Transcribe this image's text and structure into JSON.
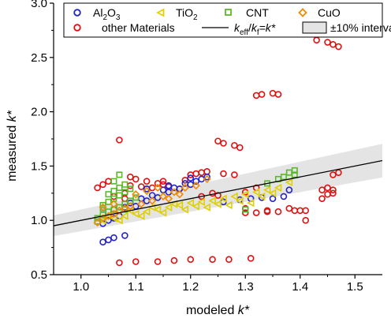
{
  "chart_data": {
    "type": "scatter",
    "xlabel": "modeled k*",
    "xlabel_parts": {
      "text": "modeled ",
      "sym": "k*"
    },
    "ylabel": "measured k*",
    "ylabel_parts": {
      "text": "measured ",
      "sym": "k*"
    },
    "xlim": [
      0.95,
      1.55
    ],
    "ylim": [
      0.5,
      3.0
    ],
    "xticks": [
      1.0,
      1.1,
      1.2,
      1.3,
      1.4,
      1.5
    ],
    "xtick_labels": [
      "1.0",
      "1.1",
      "1.2",
      "1.3",
      "1.4",
      "1.5"
    ],
    "yticks": [
      0.5,
      1.0,
      1.5,
      2.0,
      2.5,
      3.0
    ],
    "ytick_labels": [
      "0.5",
      "1.0",
      "1.5",
      "2.0",
      "2.5",
      "3.0"
    ],
    "grid": false,
    "legend_position": "top",
    "colors": {
      "Al2O3": "#2323c8",
      "TiO2": "#e0d000",
      "CNT": "#5cb82a",
      "CuO": "#f08a00",
      "other": "#e01010",
      "line": "#000000",
      "band": "#e4e4e4"
    },
    "legend": {
      "al2o3_base": "Al",
      "al2o3_sub1": "2",
      "al2o3_mid": "O",
      "al2o3_sub2": "3",
      "tio2_base": "TiO",
      "tio2_sub": "2",
      "cnt": "CNT",
      "cuo": "CuO",
      "other": "other Materials",
      "line_k": "k",
      "line_eff": "eff",
      "line_slash": "/",
      "line_kf": "k",
      "line_f": "f",
      "line_eq": "=k*",
      "band": "±10% interval"
    },
    "reference_line": {
      "slope": 1.0
    },
    "band_fraction": 0.1,
    "series": [
      {
        "name": "other Materials",
        "marker": "circle",
        "x": [
          1.07,
          1.1,
          1.14,
          1.17,
          1.2,
          1.24,
          1.27,
          1.31,
          1.07,
          1.04,
          1.03,
          1.05,
          1.08,
          1.06,
          1.32,
          1.33,
          1.35,
          1.36,
          1.25,
          1.26,
          1.28,
          1.29,
          1.43,
          1.45,
          1.46,
          1.47,
          1.47,
          1.46,
          1.45,
          1.44,
          1.46,
          1.39,
          1.4,
          1.41,
          1.38,
          1.41,
          1.36,
          1.34,
          1.32,
          1.3,
          1.22,
          1.24,
          1.18,
          1.16,
          1.14,
          1.12,
          1.1,
          1.09,
          1.15,
          1.13,
          1.11,
          1.19,
          1.21,
          1.23,
          1.12,
          1.15,
          1.08,
          1.09,
          1.3,
          1.34,
          1.44,
          1.45,
          1.46,
          1.2,
          1.22,
          1.26,
          1.28,
          1.25,
          1.3,
          1.32
        ],
        "y": [
          0.61,
          0.62,
          0.62,
          0.63,
          0.64,
          0.64,
          0.64,
          0.65,
          1.74,
          1.33,
          1.3,
          1.36,
          1.25,
          1.22,
          2.15,
          2.16,
          2.17,
          2.16,
          1.73,
          1.71,
          1.69,
          1.67,
          2.66,
          2.64,
          2.62,
          2.6,
          1.44,
          1.42,
          1.3,
          1.28,
          1.25,
          1.09,
          1.09,
          1.09,
          1.11,
          1.0,
          1.08,
          1.08,
          1.07,
          1.07,
          1.22,
          1.25,
          1.29,
          1.31,
          1.34,
          1.36,
          1.38,
          1.4,
          1.33,
          1.3,
          1.31,
          1.37,
          1.43,
          1.45,
          1.29,
          1.36,
          1.2,
          1.32,
          1.11,
          1.09,
          1.2,
          1.24,
          1.28,
          1.42,
          1.44,
          1.43,
          1.42,
          1.23,
          1.26,
          1.3
        ]
      },
      {
        "name": "Al2O3",
        "marker": "circle",
        "x": [
          1.04,
          1.05,
          1.06,
          1.08,
          1.1,
          1.12,
          1.14,
          1.16,
          1.18,
          1.2,
          1.22,
          1.23,
          1.09,
          1.11,
          1.13,
          1.15,
          1.17,
          1.19,
          1.21,
          1.07,
          1.05,
          1.04,
          1.06,
          1.26,
          1.29,
          1.31,
          1.33,
          1.35,
          1.37,
          1.38,
          1.12,
          1.16,
          1.2,
          1.06,
          1.08
        ],
        "y": [
          0.8,
          0.82,
          0.84,
          0.86,
          1.13,
          1.18,
          1.21,
          1.26,
          1.29,
          1.33,
          1.38,
          1.4,
          1.16,
          1.2,
          1.23,
          1.28,
          1.3,
          1.34,
          1.36,
          1.04,
          1.0,
          0.97,
          1.02,
          1.17,
          1.19,
          1.2,
          1.21,
          1.2,
          1.22,
          1.28,
          1.29,
          1.32,
          1.39,
          1.1,
          1.12
        ]
      },
      {
        "name": "TiO2",
        "marker": "triangle-left",
        "x": [
          1.04,
          1.06,
          1.08,
          1.1,
          1.12,
          1.14,
          1.16,
          1.18,
          1.2,
          1.22,
          1.24,
          1.26,
          1.28,
          1.3,
          1.32,
          1.34,
          1.36,
          1.05,
          1.09,
          1.13,
          1.17,
          1.21,
          1.25,
          1.29,
          1.33,
          1.07,
          1.11,
          1.15,
          1.19,
          1.23,
          1.27,
          1.31,
          1.35,
          1.38
        ],
        "y": [
          1.0,
          1.02,
          1.04,
          1.06,
          1.08,
          1.1,
          1.12,
          1.14,
          1.16,
          1.17,
          1.18,
          1.2,
          1.22,
          1.24,
          1.26,
          1.28,
          1.3,
          1.05,
          1.09,
          1.12,
          1.15,
          1.13,
          1.15,
          1.18,
          1.22,
          1.0,
          1.04,
          1.07,
          1.1,
          1.12,
          1.14,
          1.16,
          1.25,
          1.35
        ]
      },
      {
        "name": "CNT",
        "marker": "square",
        "x": [
          1.03,
          1.04,
          1.05,
          1.06,
          1.07,
          1.08,
          1.09,
          1.1,
          1.05,
          1.06,
          1.07,
          1.08,
          1.04,
          1.05,
          1.06,
          1.07,
          1.08,
          1.09,
          1.03,
          1.04,
          1.06,
          1.07,
          1.08,
          1.38,
          1.39,
          1.37,
          1.36,
          1.39,
          1.3,
          1.34
        ],
        "y": [
          1.02,
          1.05,
          1.08,
          1.1,
          1.12,
          1.15,
          1.18,
          1.21,
          1.24,
          1.27,
          1.3,
          1.33,
          1.14,
          1.17,
          1.2,
          1.23,
          1.26,
          1.29,
          0.99,
          1.11,
          1.36,
          1.42,
          1.1,
          1.44,
          1.46,
          1.4,
          1.38,
          1.42,
          1.1,
          1.34
        ]
      },
      {
        "name": "CuO",
        "marker": "diamond",
        "x": [
          1.03,
          1.04,
          1.05,
          1.06,
          1.07,
          1.08,
          1.09,
          1.11,
          1.13,
          1.15,
          1.17,
          1.19,
          1.21,
          1.23,
          1.1,
          1.12,
          1.14,
          1.16,
          1.18,
          1.04,
          1.06
        ],
        "y": [
          0.98,
          1.02,
          1.04,
          1.06,
          1.09,
          1.11,
          1.13,
          1.15,
          1.18,
          1.22,
          1.26,
          1.3,
          1.32,
          1.38,
          1.24,
          1.27,
          1.3,
          1.2,
          1.24,
          1.12,
          1.15
        ]
      }
    ]
  }
}
